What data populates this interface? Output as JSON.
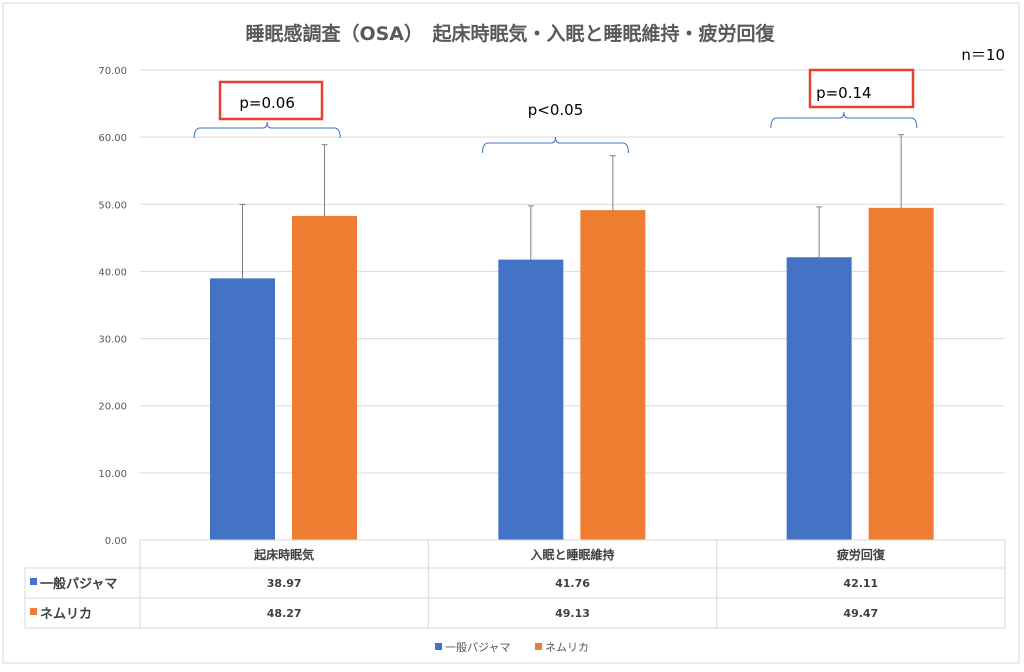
{
  "chart_data": {
    "type": "bar",
    "title": "睡眠感調査（OSA）　起床時眠気・入眠と睡眠維持・疲労回復",
    "note": "n＝10",
    "categories": [
      "起床時眠気",
      "入眠と睡眠維持",
      "疲労回復"
    ],
    "series": [
      {
        "name": "一般パジャマ",
        "color": "#4472C4",
        "values": [
          38.97,
          41.76,
          42.11
        ],
        "error": [
          11.0,
          8.0,
          7.5
        ]
      },
      {
        "name": "ネムリカ",
        "color": "#ED7D31",
        "values": [
          48.27,
          49.13,
          49.47
        ],
        "error": [
          10.6,
          8.1,
          10.9
        ]
      }
    ],
    "ylim": [
      0,
      70
    ],
    "yticks": [
      "0.00",
      "10.00",
      "20.00",
      "30.00",
      "40.00",
      "50.00",
      "60.00",
      "70.00"
    ],
    "grid": true,
    "data_table": true,
    "legend": "bottom",
    "annotations": [
      {
        "category": "起床時眠気",
        "text": "p=0.06",
        "boxed": true
      },
      {
        "category": "入眠と睡眠維持",
        "text": "p<0.05",
        "boxed": false
      },
      {
        "category": "疲労回復",
        "text": "p=0.14",
        "boxed": true
      }
    ],
    "formatted_values": [
      [
        "38.97",
        "41.76",
        "42.11"
      ],
      [
        "48.27",
        "49.13",
        "49.47"
      ]
    ]
  }
}
